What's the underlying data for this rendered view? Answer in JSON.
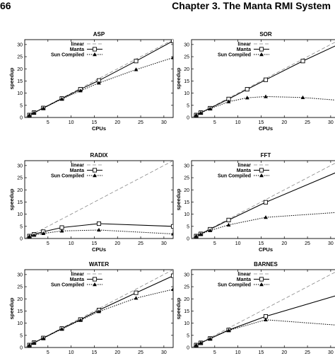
{
  "header": {
    "page_number": "66",
    "chapter_title": "Chapter 3.   The Manta RMI System"
  },
  "legend_labels": [
    "linear",
    "Manta",
    "Sun Compiled"
  ],
  "colors": {
    "ink": "#000000",
    "linear_line": "#888888"
  },
  "chart_data": [
    {
      "type": "line",
      "title": "ASP",
      "xlabel": "CPUs",
      "ylabel": "speedup",
      "xlim": [
        0,
        32
      ],
      "ylim": [
        0,
        32
      ],
      "xticks": [
        5,
        10,
        15,
        20,
        25,
        30
      ],
      "yticks": [
        0,
        5,
        10,
        15,
        20,
        25,
        30
      ],
      "legend": "top-left",
      "series": [
        {
          "name": "linear",
          "x": [
            0,
            32
          ],
          "y": [
            0,
            32
          ]
        },
        {
          "name": "Manta",
          "x": [
            1,
            2,
            4,
            8,
            12,
            16,
            24,
            32
          ],
          "y": [
            1,
            2,
            3.9,
            7.8,
            11.6,
            15.2,
            23.2,
            31.5
          ]
        },
        {
          "name": "Sun Compiled",
          "x": [
            1,
            2,
            4,
            8,
            12,
            16,
            24,
            32
          ],
          "y": [
            1,
            1.9,
            3.8,
            7.6,
            11,
            14.2,
            19.7,
            24.6
          ]
        }
      ]
    },
    {
      "type": "line",
      "title": "SOR",
      "xlabel": "CPUs",
      "ylabel": "speedup",
      "xlim": [
        0,
        32
      ],
      "ylim": [
        0,
        32
      ],
      "xticks": [
        5,
        10,
        15,
        20,
        25,
        30
      ],
      "yticks": [
        0,
        5,
        10,
        15,
        20,
        25,
        30
      ],
      "legend": "top-left",
      "series": [
        {
          "name": "linear",
          "x": [
            0,
            32
          ],
          "y": [
            0,
            32
          ]
        },
        {
          "name": "Manta",
          "x": [
            1,
            2,
            4,
            8,
            12,
            16,
            24,
            32
          ],
          "y": [
            1,
            2,
            3.8,
            7.6,
            11.6,
            15.5,
            23.2,
            30.3
          ]
        },
        {
          "name": "Sun Compiled",
          "x": [
            1,
            2,
            4,
            8,
            12,
            16,
            24,
            32
          ],
          "y": [
            1,
            1.9,
            3.6,
            6.5,
            8.1,
            8.6,
            8.2,
            7
          ]
        }
      ]
    },
    {
      "type": "line",
      "title": "RADIX",
      "xlabel": "CPUs",
      "ylabel": "speedup",
      "xlim": [
        0,
        32
      ],
      "ylim": [
        0,
        32
      ],
      "xticks": [
        5,
        10,
        15,
        20,
        25,
        30
      ],
      "yticks": [
        0,
        5,
        10,
        15,
        20,
        25,
        30
      ],
      "legend": "top-left",
      "series": [
        {
          "name": "linear",
          "x": [
            0,
            32
          ],
          "y": [
            0,
            32
          ]
        },
        {
          "name": "Manta",
          "x": [
            1,
            2,
            4,
            8,
            16,
            32
          ],
          "y": [
            1,
            1.7,
            2.8,
            4.5,
            6.1,
            5
          ]
        },
        {
          "name": "Sun Compiled",
          "x": [
            1,
            2,
            4,
            8,
            16,
            32
          ],
          "y": [
            0.9,
            1.4,
            2.1,
            3.1,
            3.5,
            1.9
          ]
        }
      ]
    },
    {
      "type": "line",
      "title": "FFT",
      "xlabel": "CPUs",
      "ylabel": "speedup",
      "xlim": [
        0,
        32
      ],
      "ylim": [
        0,
        32
      ],
      "xticks": [
        5,
        10,
        15,
        20,
        25,
        30
      ],
      "yticks": [
        0,
        5,
        10,
        15,
        20,
        25,
        30
      ],
      "legend": "top-left",
      "series": [
        {
          "name": "linear",
          "x": [
            0,
            32
          ],
          "y": [
            0,
            32
          ]
        },
        {
          "name": "Manta",
          "x": [
            1,
            2,
            4,
            8,
            16,
            32
          ],
          "y": [
            1,
            1.9,
            3.8,
            7.6,
            14.9,
            27.8
          ]
        },
        {
          "name": "Sun Compiled",
          "x": [
            1,
            2,
            4,
            8,
            16,
            32
          ],
          "y": [
            1,
            1.8,
            3.3,
            5.6,
            8.7,
            10.8
          ]
        }
      ]
    },
    {
      "type": "line",
      "title": "WATER",
      "xlabel": "CPUs",
      "ylabel": "speedup",
      "xlim": [
        0,
        32
      ],
      "ylim": [
        0,
        32
      ],
      "xticks": [
        5,
        10,
        15,
        20,
        25,
        30
      ],
      "yticks": [
        0,
        5,
        10,
        15,
        20,
        25,
        30
      ],
      "legend": "top-left",
      "series": [
        {
          "name": "linear",
          "x": [
            0,
            32
          ],
          "y": [
            0,
            32
          ]
        },
        {
          "name": "Manta",
          "x": [
            1,
            2,
            4,
            8,
            12,
            16,
            24,
            32
          ],
          "y": [
            1,
            2,
            3.9,
            7.8,
            11.5,
            15.4,
            22.5,
            29.5
          ]
        },
        {
          "name": "Sun Compiled",
          "x": [
            1,
            2,
            4,
            8,
            12,
            16,
            24,
            32
          ],
          "y": [
            1,
            1.9,
            3.8,
            7.6,
            11.2,
            14.8,
            20.3,
            23.9
          ]
        }
      ]
    },
    {
      "type": "line",
      "title": "BARNES",
      "xlabel": "CPUs",
      "ylabel": "speedup",
      "xlim": [
        0,
        32
      ],
      "ylim": [
        0,
        32
      ],
      "xticks": [
        5,
        10,
        15,
        20,
        25,
        30
      ],
      "yticks": [
        0,
        5,
        10,
        15,
        20,
        25,
        30
      ],
      "legend": "top-left",
      "series": [
        {
          "name": "linear",
          "x": [
            0,
            32
          ],
          "y": [
            0,
            32
          ]
        },
        {
          "name": "Manta",
          "x": [
            1,
            2,
            4,
            8,
            16,
            32
          ],
          "y": [
            1,
            1.9,
            3.7,
            7.2,
            12.8,
            21.8
          ]
        },
        {
          "name": "Sun Compiled",
          "x": [
            1,
            2,
            4,
            8,
            16,
            32
          ],
          "y": [
            1,
            1.9,
            3.6,
            7,
            11.4,
            9.1
          ]
        }
      ]
    }
  ]
}
